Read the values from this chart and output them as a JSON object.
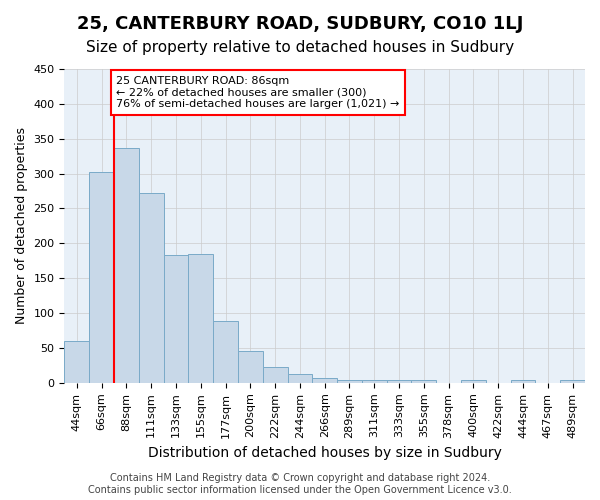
{
  "title": "25, CANTERBURY ROAD, SUDBURY, CO10 1LJ",
  "subtitle": "Size of property relative to detached houses in Sudbury",
  "xlabel": "Distribution of detached houses by size in Sudbury",
  "ylabel": "Number of detached properties",
  "footer_line1": "Contains HM Land Registry data © Crown copyright and database right 2024.",
  "footer_line2": "Contains public sector information licensed under the Open Government Licence v3.0.",
  "bin_labels": [
    "44sqm",
    "66sqm",
    "88sqm",
    "111sqm",
    "133sqm",
    "155sqm",
    "177sqm",
    "200sqm",
    "222sqm",
    "244sqm",
    "266sqm",
    "289sqm",
    "311sqm",
    "333sqm",
    "355sqm",
    "378sqm",
    "400sqm",
    "422sqm",
    "444sqm",
    "467sqm",
    "489sqm"
  ],
  "bar_values": [
    60,
    303,
    337,
    272,
    184,
    185,
    88,
    45,
    22,
    12,
    7,
    4,
    4,
    4,
    4,
    0,
    4,
    0,
    4,
    0,
    4
  ],
  "bar_color": "#c8d8e8",
  "bar_edge_color": "#7aaac8",
  "red_line_color": "red",
  "annotation_text": "25 CANTERBURY ROAD: 86sqm\n← 22% of detached houses are smaller (300)\n76% of semi-detached houses are larger (1,021) →",
  "annotation_box_color": "white",
  "annotation_box_edge": "red",
  "ylim": [
    0,
    450
  ],
  "yticks": [
    0,
    50,
    100,
    150,
    200,
    250,
    300,
    350,
    400,
    450
  ],
  "grid_color": "#cccccc",
  "bg_color": "#e8f0f8",
  "title_fontsize": 13,
  "subtitle_fontsize": 11,
  "xlabel_fontsize": 10,
  "ylabel_fontsize": 9,
  "tick_fontsize": 8,
  "annotation_fontsize": 8,
  "footer_fontsize": 7
}
